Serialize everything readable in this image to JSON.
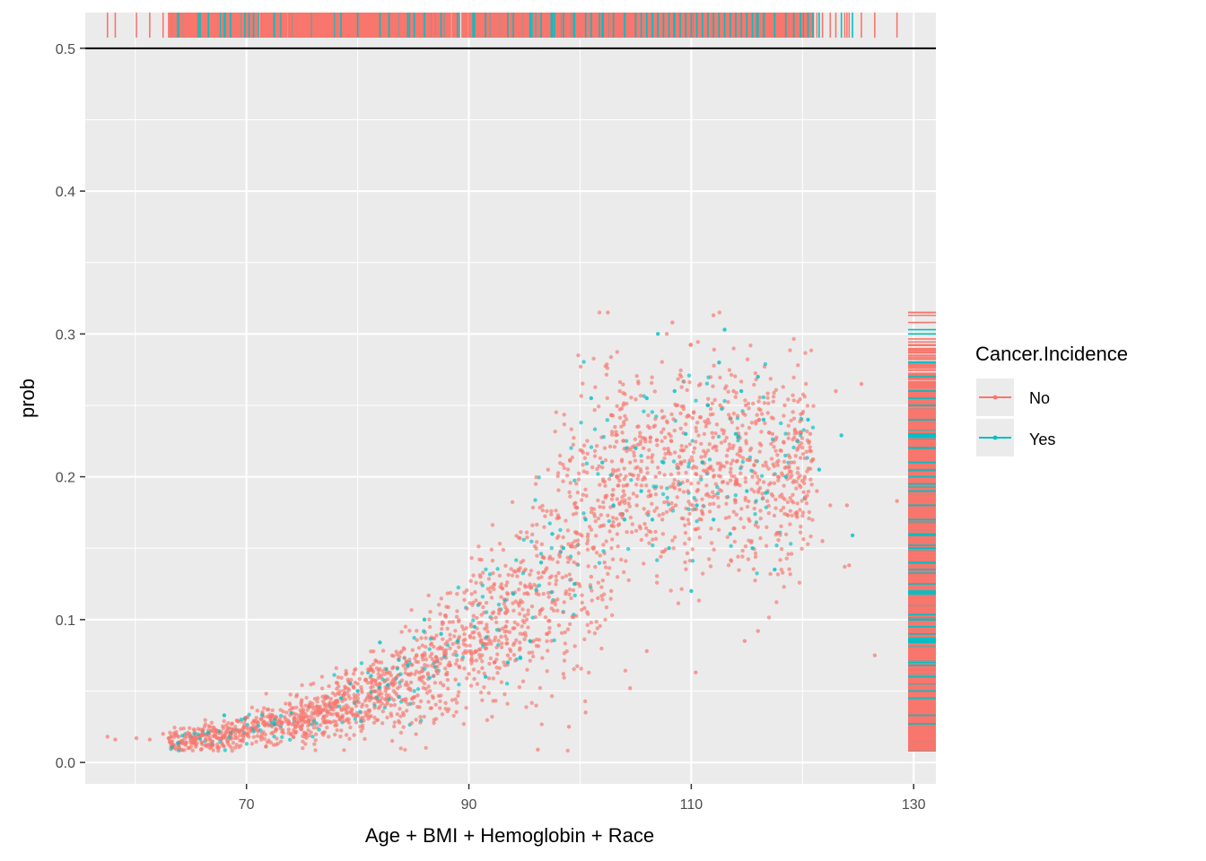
{
  "chart_data": {
    "type": "scatter",
    "xlabel": "Age + BMI + Hemoglobin + Race",
    "ylabel": "prob",
    "xlim": [
      55.5,
      132
    ],
    "ylim": [
      -0.015,
      0.525
    ],
    "x_ticks": [
      70,
      90,
      110,
      130
    ],
    "x_minor": [
      60,
      80,
      100,
      120
    ],
    "y_ticks": [
      0.0,
      0.1,
      0.2,
      0.3,
      0.4,
      0.5
    ],
    "y_tick_labels": [
      "0.0",
      "0.1",
      "0.2",
      "0.3",
      "0.4",
      "0.5"
    ],
    "hline": 0.5,
    "grid": true,
    "rug": [
      "top",
      "right"
    ],
    "legend": {
      "title": "Cancer.Incidence",
      "position": "right",
      "entries": [
        {
          "label": "No",
          "color": "#F8766D"
        },
        {
          "label": "Yes",
          "color": "#00BFC4"
        }
      ]
    },
    "series": [
      {
        "name": "No",
        "color": "#F8766D",
        "points": [
          [
            57.5,
            0.018
          ],
          [
            58.2,
            0.016
          ],
          [
            60.1,
            0.017
          ],
          [
            61.3,
            0.016
          ],
          [
            62.5,
            0.02
          ],
          [
            63.0,
            0.017
          ],
          [
            63.6,
            0.019
          ],
          [
            64.2,
            0.015
          ],
          [
            64.9,
            0.02
          ],
          [
            65.4,
            0.018
          ],
          [
            66.0,
            0.02
          ],
          [
            66.7,
            0.017
          ],
          [
            67.3,
            0.022
          ],
          [
            67.9,
            0.018
          ],
          [
            68.4,
            0.021
          ],
          [
            69.0,
            0.017
          ],
          [
            69.6,
            0.023
          ],
          [
            70.1,
            0.019
          ],
          [
            70.8,
            0.024
          ],
          [
            71.4,
            0.02
          ],
          [
            72.0,
            0.026
          ],
          [
            72.6,
            0.022
          ],
          [
            73.2,
            0.028
          ],
          [
            73.8,
            0.023
          ],
          [
            74.3,
            0.03
          ],
          [
            74.9,
            0.025
          ],
          [
            75.5,
            0.032
          ],
          [
            76.1,
            0.027
          ],
          [
            76.7,
            0.035
          ],
          [
            77.2,
            0.028
          ],
          [
            77.8,
            0.037
          ],
          [
            78.4,
            0.03
          ],
          [
            79.0,
            0.04
          ],
          [
            79.6,
            0.033
          ],
          [
            80.1,
            0.042
          ],
          [
            80.7,
            0.035
          ],
          [
            81.3,
            0.045
          ],
          [
            81.9,
            0.038
          ],
          [
            82.5,
            0.05
          ],
          [
            83.0,
            0.04
          ],
          [
            83.6,
            0.052
          ],
          [
            84.2,
            0.044
          ],
          [
            84.8,
            0.056
          ],
          [
            85.4,
            0.047
          ],
          [
            85.9,
            0.06
          ],
          [
            86.5,
            0.05
          ],
          [
            87.1,
            0.064
          ],
          [
            87.7,
            0.054
          ],
          [
            88.3,
            0.068
          ],
          [
            88.8,
            0.058
          ],
          [
            89.4,
            0.072
          ],
          [
            90.0,
            0.062
          ],
          [
            90.6,
            0.078
          ],
          [
            91.2,
            0.066
          ],
          [
            91.7,
            0.083
          ],
          [
            92.3,
            0.07
          ],
          [
            92.9,
            0.088
          ],
          [
            93.5,
            0.075
          ],
          [
            94.1,
            0.094
          ],
          [
            94.6,
            0.08
          ],
          [
            95.2,
            0.1
          ],
          [
            95.8,
            0.085
          ],
          [
            96.4,
            0.106
          ],
          [
            97.0,
            0.09
          ],
          [
            97.5,
            0.112
          ],
          [
            98.1,
            0.096
          ],
          [
            98.7,
            0.118
          ],
          [
            99.3,
            0.102
          ],
          [
            99.9,
            0.125
          ],
          [
            100.4,
            0.108
          ],
          [
            101.0,
            0.13
          ],
          [
            101.6,
            0.115
          ],
          [
            102.2,
            0.14
          ],
          [
            102.8,
            0.12
          ],
          [
            103.3,
            0.2
          ],
          [
            103.9,
            0.19
          ],
          [
            104.5,
            0.21
          ],
          [
            105.1,
            0.18
          ],
          [
            105.7,
            0.22
          ],
          [
            106.2,
            0.19
          ],
          [
            106.8,
            0.2
          ],
          [
            107.4,
            0.17
          ],
          [
            108.0,
            0.23
          ],
          [
            108.6,
            0.18
          ],
          [
            109.1,
            0.21
          ],
          [
            109.7,
            0.19
          ],
          [
            110.3,
            0.22
          ],
          [
            110.9,
            0.17
          ],
          [
            111.5,
            0.24
          ],
          [
            112.0,
            0.2
          ],
          [
            112.6,
            0.25
          ],
          [
            113.2,
            0.21
          ],
          [
            113.8,
            0.26
          ],
          [
            114.4,
            0.22
          ],
          [
            114.9,
            0.25
          ],
          [
            115.5,
            0.2
          ],
          [
            116.1,
            0.24
          ],
          [
            116.7,
            0.21
          ],
          [
            117.3,
            0.23
          ],
          [
            117.8,
            0.2
          ],
          [
            118.4,
            0.25
          ],
          [
            119.0,
            0.21
          ],
          [
            119.6,
            0.22
          ],
          [
            120.2,
            0.2
          ],
          [
            120.7,
            0.23
          ],
          [
            121.3,
            0.19
          ],
          [
            122.5,
            0.18
          ],
          [
            123.0,
            0.26
          ],
          [
            124.0,
            0.18
          ],
          [
            125.3,
            0.265
          ],
          [
            126.5,
            0.075
          ],
          [
            128.5,
            0.183
          ],
          [
            102.5,
            0.315
          ],
          [
            108.3,
            0.308
          ],
          [
            112.0,
            0.313
          ],
          [
            107.8,
            0.3
          ],
          [
            96.2,
            0.009
          ],
          [
            99.0,
            0.025
          ],
          [
            110.4,
            0.063
          ],
          [
            106.0,
            0.078
          ],
          [
            121.8,
            0.155
          ],
          [
            123.8,
            0.137
          ],
          [
            124.2,
            0.138
          ],
          [
            114.8,
            0.085
          ],
          [
            116.0,
            0.092
          ],
          [
            98.5,
            0.062
          ],
          [
            100.5,
            0.035
          ],
          [
            104.5,
            0.052
          ]
        ]
      },
      {
        "name": "Yes",
        "color": "#00BFC4",
        "points": [
          [
            68.0,
            0.033
          ],
          [
            72.5,
            0.027
          ],
          [
            78.5,
            0.045
          ],
          [
            80.0,
            0.05
          ],
          [
            82.0,
            0.084
          ],
          [
            84.5,
            0.068
          ],
          [
            86.0,
            0.1
          ],
          [
            87.5,
            0.09
          ],
          [
            89.0,
            0.085
          ],
          [
            90.5,
            0.095
          ],
          [
            91.5,
            0.06
          ],
          [
            93.5,
            0.07
          ],
          [
            94.0,
            0.118
          ],
          [
            95.5,
            0.085
          ],
          [
            96.5,
            0.14
          ],
          [
            97.5,
            0.16
          ],
          [
            98.5,
            0.15
          ],
          [
            99.5,
            0.125
          ],
          [
            100.5,
            0.17
          ],
          [
            101.0,
            0.255
          ],
          [
            102.0,
            0.21
          ],
          [
            103.0,
            0.18
          ],
          [
            104.0,
            0.17
          ],
          [
            105.0,
            0.22
          ],
          [
            105.5,
            0.19
          ],
          [
            106.0,
            0.255
          ],
          [
            106.5,
            0.17
          ],
          [
            107.0,
            0.3
          ],
          [
            107.5,
            0.21
          ],
          [
            108.0,
            0.15
          ],
          [
            108.5,
            0.26
          ],
          [
            109.0,
            0.195
          ],
          [
            109.5,
            0.23
          ],
          [
            110.0,
            0.12
          ],
          [
            110.5,
            0.18
          ],
          [
            111.0,
            0.21
          ],
          [
            111.5,
            0.25
          ],
          [
            112.0,
            0.17
          ],
          [
            112.5,
            0.28
          ],
          [
            113.0,
            0.303
          ],
          [
            113.5,
            0.16
          ],
          [
            114.0,
            0.23
          ],
          [
            114.5,
            0.26
          ],
          [
            115.0,
            0.19
          ],
          [
            115.5,
            0.15
          ],
          [
            116.0,
            0.27
          ],
          [
            116.5,
            0.24
          ],
          [
            117.5,
            0.135
          ],
          [
            118.5,
            0.2
          ],
          [
            120.5,
            0.24
          ],
          [
            121.5,
            0.205
          ],
          [
            123.5,
            0.229
          ],
          [
            124.5,
            0.159
          ]
        ]
      }
    ]
  }
}
